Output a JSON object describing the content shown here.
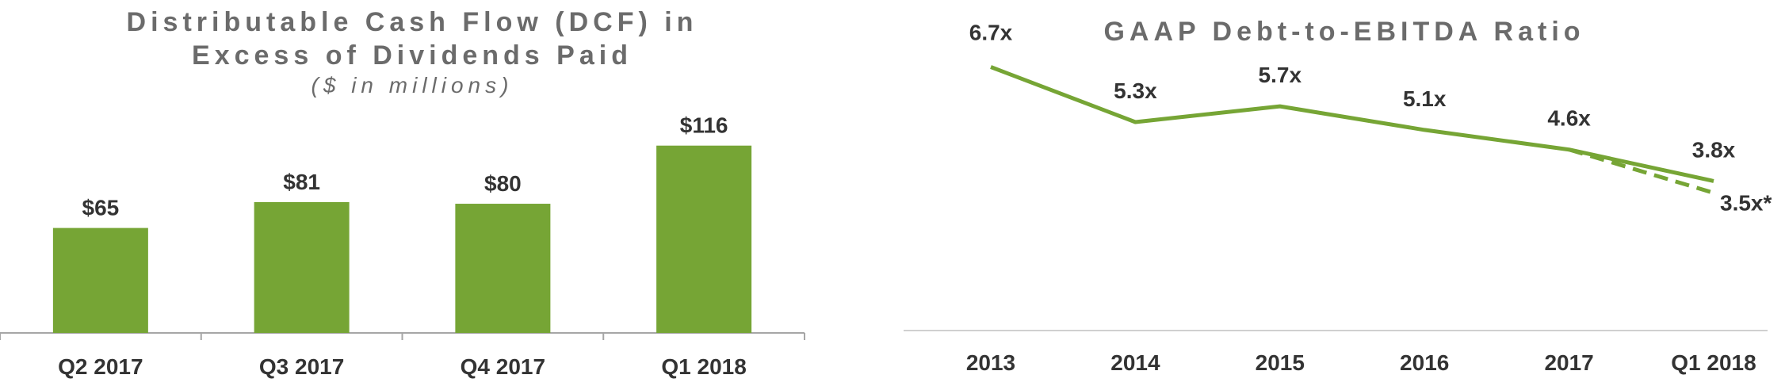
{
  "chart_data": [
    {
      "type": "bar",
      "title_lines": [
        "Distributable Cash Flow (DCF) in",
        "Excess of Dividends Paid"
      ],
      "subtitle": "($ in millions)",
      "categories": [
        "Q2 2017",
        "Q3 2017",
        "Q4 2017",
        "Q1 2018"
      ],
      "values": [
        65,
        81,
        80,
        116
      ],
      "data_labels": [
        "$65",
        "$81",
        "$80",
        "$116"
      ],
      "ylim": [
        0,
        135
      ],
      "grid": false,
      "bar_color": "#76a535",
      "axis_color": "#a6a6a6"
    },
    {
      "type": "line",
      "title": "GAAP Debt-to-EBITDA Ratio",
      "categories": [
        "2013",
        "2014",
        "2015",
        "2016",
        "2017",
        "Q1 2018"
      ],
      "series": [
        {
          "values": [
            6.7,
            5.3,
            5.7,
            5.1,
            4.6,
            3.8
          ],
          "data_labels": [
            "6.7x",
            "5.3x",
            "5.7x",
            "5.1x",
            "4.6x",
            "3.8x"
          ],
          "style": "solid"
        },
        {
          "points": [
            {
              "x": "2017",
              "y": 4.6
            },
            {
              "x": "Q1 2018",
              "y": 3.5
            }
          ],
          "data_labels": [
            "",
            "3.5x*"
          ],
          "style": "dashed"
        }
      ],
      "ylim": [
        0,
        8
      ],
      "grid": false,
      "line_color": "#76a535",
      "axis_color": "#d0d0d0"
    }
  ]
}
